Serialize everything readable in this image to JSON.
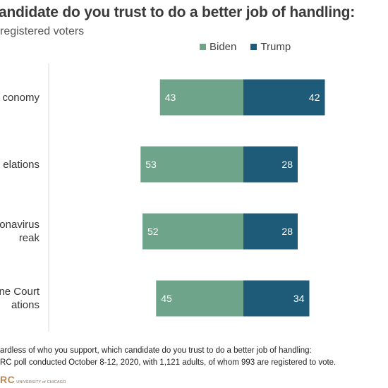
{
  "header": {
    "title": "andidate do you trust to do a better job of handling:",
    "subtitle": "registered voters"
  },
  "legend": {
    "items": [
      {
        "label": "Biden",
        "color": "#6ea58a"
      },
      {
        "label": "Trump",
        "color": "#1d5b79"
      }
    ]
  },
  "chart_data": {
    "type": "bar",
    "orientation": "horizontal-diverging",
    "categories": [
      [
        "conomy"
      ],
      [
        "elations"
      ],
      [
        "onavirus",
        "reak"
      ],
      [
        "ne Court",
        "ations"
      ]
    ],
    "series": [
      {
        "name": "Biden",
        "color": "#6ea58a",
        "values": [
          43,
          53,
          52,
          45
        ]
      },
      {
        "name": "Trump",
        "color": "#1d5b79",
        "values": [
          42,
          28,
          28,
          34
        ]
      }
    ],
    "grid": false,
    "legend_position": "top"
  },
  "footnote": {
    "line1": "ardless of who you support, which candidate do you trust to do a better job of handling:",
    "line2": "RC poll conducted October 8-12, 2020, with 1,121 adults, of whom 993 are registered to vote."
  },
  "logo": {
    "mark": "RC",
    "subtext": "UNIVERSITY of CHICAGO"
  }
}
